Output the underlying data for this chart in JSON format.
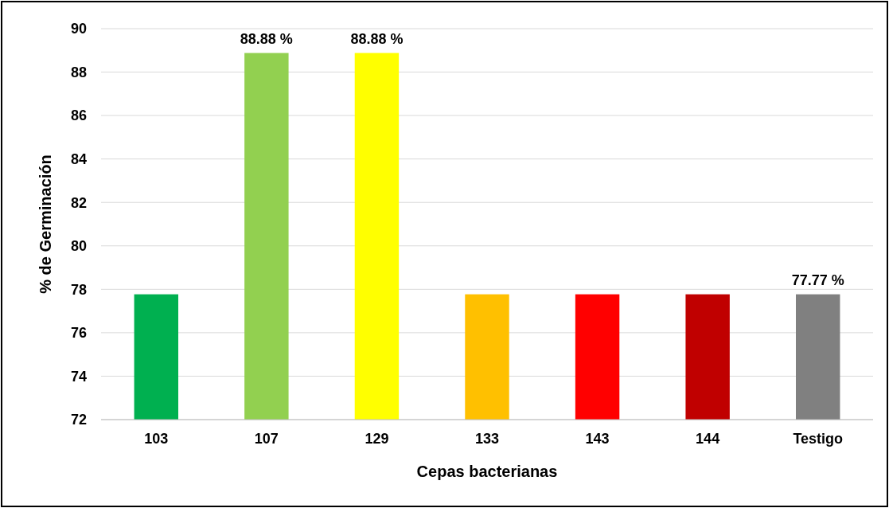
{
  "chart_data": {
    "type": "bar",
    "xlabel": "Cepas bacterianas",
    "ylabel": "% de Germinación",
    "categories": [
      "103",
      "107",
      "129",
      "133",
      "143",
      "144",
      "Testigo"
    ],
    "values": [
      77.77,
      88.88,
      88.88,
      77.77,
      77.77,
      77.77,
      77.77
    ],
    "colors": [
      "#00b050",
      "#92d050",
      "#ffff00",
      "#ffc000",
      "#ff0000",
      "#c00000",
      "#808080"
    ],
    "value_labels": [
      null,
      "88.88 %",
      "88.88 %",
      null,
      null,
      null,
      "77.77 %"
    ],
    "ylim": [
      72,
      90
    ],
    "yticks": [
      72,
      74,
      76,
      78,
      80,
      82,
      84,
      86,
      88,
      90
    ],
    "grid": "y"
  }
}
